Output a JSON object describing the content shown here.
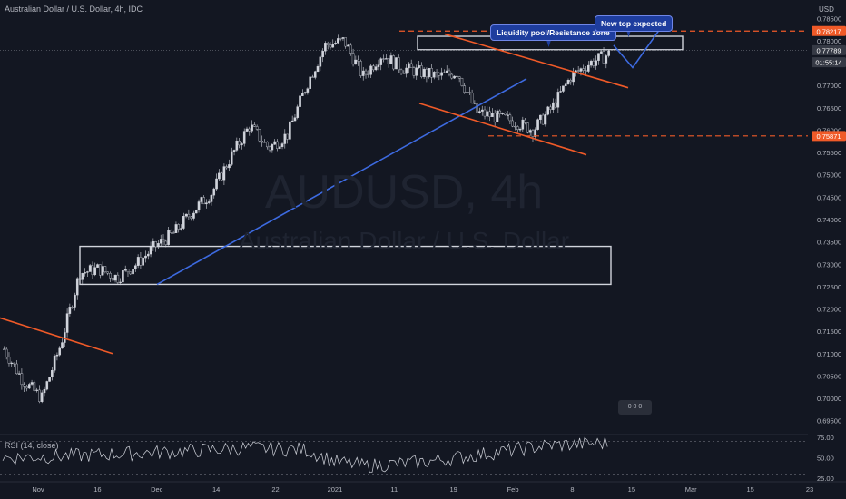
{
  "header": {
    "title": "Australian Dollar / U.S. Dollar, 4h, IDC"
  },
  "watermark": {
    "symbol": "AUDUSD, 4h",
    "description": "Australian Dollar / U.S. Dollar"
  },
  "currency": "USD",
  "rsi": {
    "label": "RSI (14, close)",
    "upper": 70,
    "lower": 30
  },
  "callouts": {
    "liquidity": "Liquidity pool/Resistance zone",
    "new_top": "New top expected"
  },
  "badge": "0 0 0",
  "colors": {
    "background": "#131722",
    "candle": "#d1d4dc",
    "blue_line": "#3d6ae0",
    "orange_line": "#f05a28",
    "box": "#d1d4dc"
  },
  "chart_data": {
    "type": "candlestick",
    "symbol": "AUDUSD",
    "timeframe": "4h",
    "ylim": [
      0.6925,
      0.7875
    ],
    "y_ticks": [
      "0.78500",
      "0.78000",
      "0.77500",
      "0.77000",
      "0.76500",
      "0.76000",
      "0.75500",
      "0.75000",
      "0.74500",
      "0.74000",
      "0.73500",
      "0.73000",
      "0.72500",
      "0.72000",
      "0.71500",
      "0.71000",
      "0.70500",
      "0.70000",
      "0.69500"
    ],
    "x_ticks": [
      "Nov",
      "16",
      "Dec",
      "14",
      "22",
      "2021",
      "11",
      "19",
      "Feb",
      "8",
      "15",
      "Mar",
      "15",
      "23"
    ],
    "price_tags": [
      {
        "text": "0.78217",
        "value": 0.78217,
        "color": "#f05a28"
      },
      {
        "text": "0.77789",
        "value": 0.77789,
        "color": "#363a45"
      },
      {
        "text": "01:55:14",
        "value": 0.7752,
        "color": "#363a45"
      },
      {
        "text": "0.75871",
        "value": 0.75871,
        "color": "#f05a28"
      }
    ],
    "trend": [
      [
        "Oct 30",
        0.711
      ],
      [
        "Nov 2",
        0.704
      ],
      [
        "Nov 4",
        0.7
      ],
      [
        "Nov 5",
        0.712
      ],
      [
        "Nov 9",
        0.728
      ],
      [
        "Nov 12",
        0.729
      ],
      [
        "Nov 16",
        0.727
      ],
      [
        "Nov 20",
        0.73
      ],
      [
        "Nov 25",
        0.734
      ],
      [
        "Dec 1",
        0.737
      ],
      [
        "Dec 4",
        0.742
      ],
      [
        "Dec 8",
        0.746
      ],
      [
        "Dec 14",
        0.754
      ],
      [
        "Dec 17",
        0.761
      ],
      [
        "Dec 21",
        0.756
      ],
      [
        "Dec 24",
        0.759
      ],
      [
        "Dec 31",
        0.77
      ],
      [
        "Jan 6",
        0.779
      ],
      [
        "Jan 8",
        0.78
      ],
      [
        "Jan 11",
        0.772
      ],
      [
        "Jan 13",
        0.777
      ],
      [
        "Jan 15",
        0.774
      ],
      [
        "Jan 19",
        0.773
      ],
      [
        "Jan 22",
        0.772
      ],
      [
        "Jan 26",
        0.773
      ],
      [
        "Jan 28",
        0.764
      ],
      [
        "Jan 30",
        0.763
      ],
      [
        "Feb 2",
        0.762
      ],
      [
        "Feb 4",
        0.76
      ],
      [
        "Feb 6",
        0.765
      ],
      [
        "Feb 9",
        0.772
      ],
      [
        "Feb 11",
        0.775
      ],
      [
        "Feb 12",
        0.777
      ]
    ],
    "rsi_range": [
      25,
      75
    ],
    "rsi_trend": [
      [
        0,
        50
      ],
      [
        0.1,
        52
      ],
      [
        0.2,
        55
      ],
      [
        0.3,
        58
      ],
      [
        0.4,
        62
      ],
      [
        0.5,
        60
      ],
      [
        0.55,
        45
      ],
      [
        0.6,
        40
      ],
      [
        0.7,
        45
      ],
      [
        0.8,
        55
      ],
      [
        0.9,
        65
      ],
      [
        1,
        68
      ]
    ],
    "drawings": {
      "resistance_value": 0.78217,
      "support_value": 0.75871,
      "liquidity_zone": {
        "from": 0.778,
        "to": 0.781
      },
      "demand_zone": {
        "from": 0.7255,
        "to": 0.734
      }
    }
  }
}
